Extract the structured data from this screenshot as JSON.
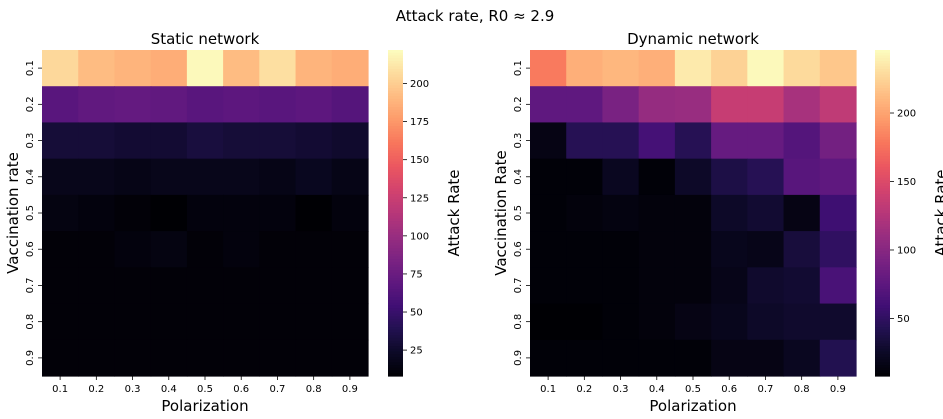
{
  "suptitle": "Attack rate, R0 ≈ 2.9",
  "chart_data": [
    {
      "type": "heatmap",
      "title": "Static network",
      "xlabel": "Polarization",
      "ylabel": "Vaccination rate",
      "colorbar_label": "Attack Rate",
      "colormap": "magma",
      "x": [
        "0.1",
        "0.2",
        "0.3",
        "0.4",
        "0.5",
        "0.6",
        "0.7",
        "0.8",
        "0.9"
      ],
      "y": [
        "0.1",
        "0.2",
        "0.3",
        "0.4",
        "0.5",
        "0.6",
        "0.7",
        "0.8",
        "0.9"
      ],
      "vmin": 8,
      "vmax": 222,
      "colorbar_ticks": [
        25,
        50,
        75,
        100,
        125,
        150,
        175,
        200
      ],
      "values": [
        [
          205,
          192,
          188,
          185,
          220,
          192,
          208,
          188,
          185
        ],
        [
          66,
          70,
          72,
          70,
          66,
          68,
          66,
          68,
          64
        ],
        [
          30,
          30,
          28,
          28,
          32,
          30,
          30,
          28,
          26
        ],
        [
          18,
          18,
          16,
          18,
          18,
          18,
          16,
          20,
          16
        ],
        [
          14,
          12,
          10,
          8,
          12,
          12,
          12,
          8,
          12
        ],
        [
          10,
          10,
          12,
          14,
          10,
          12,
          10,
          10,
          10
        ],
        [
          10,
          10,
          10,
          10,
          10,
          10,
          10,
          10,
          10
        ],
        [
          10,
          10,
          10,
          10,
          10,
          10,
          10,
          10,
          10
        ],
        [
          10,
          10,
          10,
          10,
          10,
          10,
          10,
          10,
          10
        ]
      ]
    },
    {
      "type": "heatmap",
      "title": "Dynamic network",
      "xlabel": "Polarization",
      "ylabel": "Vaccination Rate",
      "colorbar_label": "Attack Rate",
      "colormap": "magma",
      "x": [
        "0.1",
        "0.2",
        "0.3",
        "0.4",
        "0.5",
        "0.6",
        "0.7",
        "0.8",
        "0.9"
      ],
      "y": [
        "0.1",
        "0.2",
        "0.3",
        "0.4",
        "0.5",
        "0.6",
        "0.7",
        "0.8",
        "0.9"
      ],
      "vmin": 8,
      "vmax": 246,
      "colorbar_ticks": [
        50,
        100,
        150,
        200
      ],
      "values": [
        [
          180,
          206,
          210,
          206,
          236,
          224,
          244,
          228,
          218
        ],
        [
          76,
          76,
          92,
          108,
          110,
          136,
          136,
          118,
          132
        ],
        [
          16,
          44,
          44,
          62,
          44,
          80,
          80,
          70,
          88
        ],
        [
          10,
          10,
          22,
          10,
          26,
          38,
          44,
          72,
          76
        ],
        [
          10,
          12,
          14,
          12,
          12,
          26,
          30,
          16,
          58
        ],
        [
          10,
          10,
          10,
          12,
          12,
          20,
          18,
          34,
          50
        ],
        [
          10,
          10,
          10,
          12,
          12,
          18,
          28,
          30,
          64
        ],
        [
          8,
          8,
          10,
          12,
          16,
          20,
          26,
          28,
          28
        ],
        [
          10,
          10,
          10,
          10,
          10,
          16,
          16,
          22,
          42
        ]
      ]
    }
  ]
}
